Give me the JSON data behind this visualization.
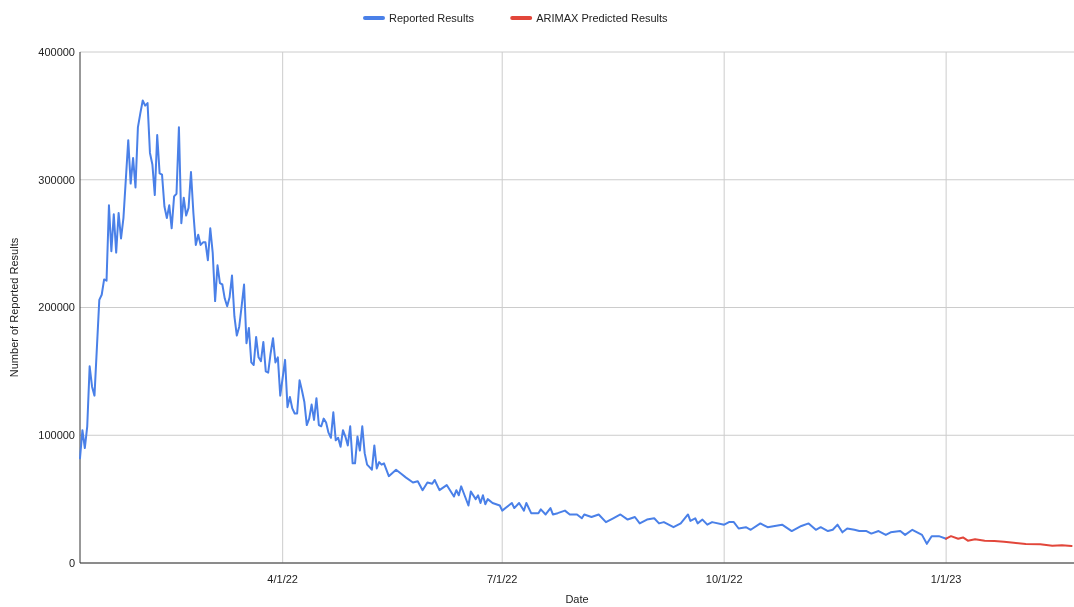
{
  "chart_data": {
    "type": "line",
    "xlabel": "Date",
    "ylabel": "Number of Reported Results",
    "xlim": [
      "2022-01-07",
      "2023-02-23"
    ],
    "ylim": [
      0,
      400000
    ],
    "yticks": [
      0,
      100000,
      200000,
      300000,
      400000
    ],
    "xticks": [
      {
        "value": "2022-04-01",
        "label": "4/1/22"
      },
      {
        "value": "2022-07-01",
        "label": "7/1/22"
      },
      {
        "value": "2022-10-01",
        "label": "10/1/22"
      },
      {
        "value": "2023-01-01",
        "label": "1/1/23"
      }
    ],
    "grid": true,
    "legend": "top",
    "marker": "none",
    "line_style": "solid",
    "series": [
      {
        "name": "Reported Results",
        "color": "#4a80e8",
        "x": [
          "2022-01-07",
          "2022-01-08",
          "2022-01-09",
          "2022-01-10",
          "2022-01-11",
          "2022-01-12",
          "2022-01-13",
          "2022-01-15",
          "2022-01-16",
          "2022-01-17",
          "2022-01-18",
          "2022-01-19",
          "2022-01-20",
          "2022-01-21",
          "2022-01-22",
          "2022-01-23",
          "2022-01-24",
          "2022-01-25",
          "2022-01-27",
          "2022-01-28",
          "2022-01-29",
          "2022-01-30",
          "2022-01-31",
          "2022-02-01",
          "2022-02-02",
          "2022-02-03",
          "2022-02-04",
          "2022-02-05",
          "2022-02-06",
          "2022-02-07",
          "2022-02-08",
          "2022-02-09",
          "2022-02-10",
          "2022-02-11",
          "2022-02-12",
          "2022-02-13",
          "2022-02-14",
          "2022-02-15",
          "2022-02-16",
          "2022-02-17",
          "2022-02-18",
          "2022-02-19",
          "2022-02-20",
          "2022-02-21",
          "2022-02-22",
          "2022-02-23",
          "2022-02-24",
          "2022-02-25",
          "2022-02-26",
          "2022-02-27",
          "2022-02-28",
          "2022-03-01",
          "2022-03-02",
          "2022-03-03",
          "2022-03-04",
          "2022-03-05",
          "2022-03-06",
          "2022-03-07",
          "2022-03-08",
          "2022-03-09",
          "2022-03-10",
          "2022-03-11",
          "2022-03-12",
          "2022-03-13",
          "2022-03-14",
          "2022-03-15",
          "2022-03-16",
          "2022-03-17",
          "2022-03-18",
          "2022-03-19",
          "2022-03-20",
          "2022-03-21",
          "2022-03-22",
          "2022-03-23",
          "2022-03-24",
          "2022-03-25",
          "2022-03-26",
          "2022-03-27",
          "2022-03-28",
          "2022-03-29",
          "2022-03-30",
          "2022-03-31",
          "2022-04-02",
          "2022-04-03",
          "2022-04-04",
          "2022-04-05",
          "2022-04-06",
          "2022-04-07",
          "2022-04-08",
          "2022-04-09",
          "2022-04-10",
          "2022-04-11",
          "2022-04-12",
          "2022-04-13",
          "2022-04-14",
          "2022-04-15",
          "2022-04-16",
          "2022-04-17",
          "2022-04-18",
          "2022-04-19",
          "2022-04-20",
          "2022-04-21",
          "2022-04-22",
          "2022-04-23",
          "2022-04-24",
          "2022-04-25",
          "2022-04-26",
          "2022-04-27",
          "2022-04-28",
          "2022-04-29",
          "2022-04-30",
          "2022-05-01",
          "2022-05-02",
          "2022-05-03",
          "2022-05-04",
          "2022-05-05",
          "2022-05-06",
          "2022-05-07",
          "2022-05-08",
          "2022-05-09",
          "2022-05-10",
          "2022-05-11",
          "2022-05-12",
          "2022-05-13",
          "2022-05-15",
          "2022-05-18",
          "2022-05-20",
          "2022-05-22",
          "2022-05-25",
          "2022-05-27",
          "2022-05-29",
          "2022-05-31",
          "2022-06-02",
          "2022-06-03",
          "2022-06-05",
          "2022-06-08",
          "2022-06-11",
          "2022-06-12",
          "2022-06-13",
          "2022-06-14",
          "2022-06-15",
          "2022-06-17",
          "2022-06-18",
          "2022-06-20",
          "2022-06-21",
          "2022-06-22",
          "2022-06-23",
          "2022-06-24",
          "2022-06-25",
          "2022-06-27",
          "2022-06-30",
          "2022-07-01",
          "2022-07-05",
          "2022-07-06",
          "2022-07-08",
          "2022-07-10",
          "2022-07-11",
          "2022-07-13",
          "2022-07-16",
          "2022-07-17",
          "2022-07-19",
          "2022-07-21",
          "2022-07-22",
          "2022-07-24",
          "2022-07-27",
          "2022-07-29",
          "2022-08-01",
          "2022-08-03",
          "2022-08-04",
          "2022-08-07",
          "2022-08-10",
          "2022-08-13",
          "2022-08-16",
          "2022-08-19",
          "2022-08-22",
          "2022-08-25",
          "2022-08-27",
          "2022-08-30",
          "2022-09-02",
          "2022-09-04",
          "2022-09-06",
          "2022-09-10",
          "2022-09-13",
          "2022-09-16",
          "2022-09-17",
          "2022-09-19",
          "2022-09-20",
          "2022-09-22",
          "2022-09-24",
          "2022-09-26",
          "2022-10-01",
          "2022-10-03",
          "2022-10-05",
          "2022-10-07",
          "2022-10-10",
          "2022-10-12",
          "2022-10-16",
          "2022-10-19",
          "2022-10-22",
          "2022-10-25",
          "2022-10-29",
          "2022-11-02",
          "2022-11-05",
          "2022-11-08",
          "2022-11-10",
          "2022-11-13",
          "2022-11-15",
          "2022-11-17",
          "2022-11-19",
          "2022-11-21",
          "2022-11-24",
          "2022-11-26",
          "2022-11-29",
          "2022-12-01",
          "2022-12-04",
          "2022-12-07",
          "2022-12-09",
          "2022-12-13",
          "2022-12-15",
          "2022-12-18",
          "2022-12-22",
          "2022-12-24",
          "2022-12-26",
          "2022-12-29",
          "2023-01-01"
        ],
        "values": [
          82000,
          104000,
          90000,
          107000,
          154000,
          138000,
          131000,
          206000,
          210000,
          222000,
          221000,
          280000,
          244000,
          273000,
          243000,
          274000,
          254000,
          270000,
          331000,
          297000,
          317000,
          294000,
          341000,
          352000,
          362000,
          358000,
          360000,
          321000,
          312000,
          288000,
          335000,
          305000,
          304000,
          279000,
          270000,
          280000,
          262000,
          287000,
          289000,
          341000,
          266000,
          286000,
          272000,
          278000,
          306000,
          274000,
          249000,
          257000,
          249000,
          251000,
          251000,
          237000,
          262000,
          243000,
          205000,
          233000,
          219000,
          218000,
          207000,
          201000,
          208000,
          225000,
          193000,
          178000,
          185000,
          201000,
          218000,
          172000,
          184000,
          157000,
          155000,
          177000,
          161000,
          158000,
          173000,
          150000,
          149000,
          164000,
          176000,
          157000,
          161000,
          131000,
          159000,
          122000,
          130000,
          121000,
          117000,
          117000,
          143000,
          135000,
          126000,
          108000,
          113000,
          124000,
          112000,
          129000,
          108000,
          107000,
          113000,
          110000,
          102000,
          98000,
          118000,
          96000,
          98000,
          91000,
          104000,
          99000,
          92000,
          107000,
          78000,
          78000,
          99000,
          88000,
          107000,
          86000,
          77000,
          75000,
          73000,
          92000,
          74000,
          79000,
          77000,
          78000,
          68000,
          73000,
          70000,
          67000,
          63000,
          64000,
          57000,
          63000,
          62000,
          65000,
          57000,
          61000,
          52000,
          57000,
          53000,
          60000,
          55000,
          45000,
          56000,
          50000,
          53000,
          47000,
          53000,
          46000,
          50000,
          47000,
          45000,
          41000,
          47000,
          43000,
          47000,
          41000,
          47000,
          39000,
          39000,
          42000,
          38000,
          43000,
          38000,
          39000,
          41000,
          38000,
          38000,
          35000,
          38000,
          36000,
          38000,
          32000,
          35000,
          38000,
          34000,
          36000,
          31000,
          34000,
          35000,
          31000,
          32000,
          28000,
          31000,
          38000,
          33000,
          35000,
          31000,
          34000,
          30000,
          32000,
          30000,
          32000,
          32000,
          27000,
          28000,
          26000,
          31000,
          28000,
          29000,
          30000,
          25000,
          29000,
          31000,
          26000,
          28000,
          25000,
          26000,
          30000,
          24000,
          27000,
          26000,
          25000,
          25000,
          23000,
          25000,
          22000,
          24000,
          25000,
          22000,
          26000,
          22000,
          15000,
          21000,
          21000,
          19000
        ]
      },
      {
        "name": "ARIMAX Predicted Results",
        "color": "#e2463a",
        "x": [
          "2023-01-01",
          "2023-01-03",
          "2023-01-06",
          "2023-01-08",
          "2023-01-10",
          "2023-01-13",
          "2023-01-17",
          "2023-01-21",
          "2023-01-25",
          "2023-01-29",
          "2023-02-03",
          "2023-02-09",
          "2023-02-14",
          "2023-02-18",
          "2023-02-22"
        ],
        "values": [
          19000,
          21000,
          19000,
          20000,
          17500,
          18600,
          17500,
          17200,
          16700,
          15900,
          14900,
          14600,
          13500,
          13900,
          13300
        ]
      }
    ]
  }
}
